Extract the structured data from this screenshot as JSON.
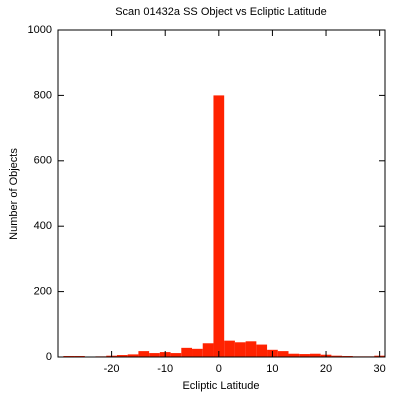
{
  "chart_data": {
    "type": "histogram",
    "title": "Scan 01432a SS Object vs Ecliptic Latitude",
    "xlabel": "Ecliptic Latitude",
    "ylabel": "Number of Objects",
    "bins": [
      -29,
      -27,
      -25,
      -23,
      -21,
      -19,
      -17,
      -15,
      -13,
      -11,
      -9,
      -7,
      -5,
      -3,
      -1,
      1,
      3,
      5,
      7,
      9,
      11,
      13,
      15,
      17,
      19,
      21,
      23,
      25,
      27,
      29,
      31
    ],
    "values": [
      3,
      3,
      1,
      2,
      4,
      6,
      8,
      18,
      12,
      15,
      12,
      28,
      25,
      42,
      800,
      50,
      45,
      48,
      38,
      22,
      18,
      10,
      9,
      10,
      7,
      4,
      3,
      2,
      2,
      4
    ],
    "color": "#ff2200",
    "xlim": [
      -30,
      31
    ],
    "xticks": [
      -20,
      -10,
      0,
      10,
      20,
      30
    ],
    "ylim": [
      0,
      1000
    ],
    "yticks": [
      0,
      200,
      400,
      600,
      800,
      1000
    ]
  }
}
